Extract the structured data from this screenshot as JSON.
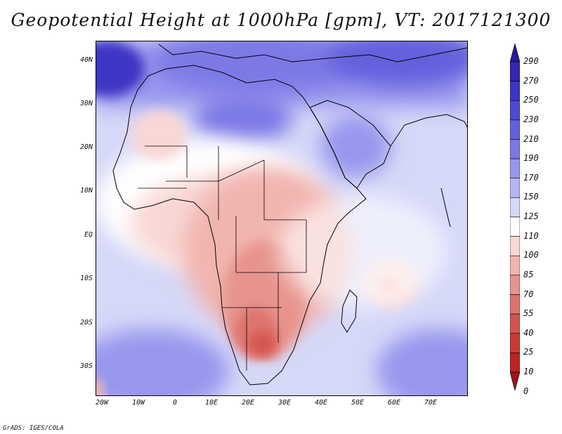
{
  "title": "Geopotential Height at 1000hPa [gpm], VT: 2017121300",
  "credit": "GrADS: IGES/COLA",
  "map": {
    "lat_labels": [
      "40N",
      "30N",
      "20N",
      "10N",
      "EQ",
      "10S",
      "20S",
      "30S"
    ],
    "lon_labels": [
      "20W",
      "10W",
      "0",
      "10E",
      "20E",
      "30E",
      "40E",
      "50E",
      "60E",
      "70E"
    ]
  },
  "colorbar": {
    "labels": [
      "290",
      "270",
      "250",
      "230",
      "210",
      "190",
      "170",
      "150",
      "125",
      "110",
      "100",
      "85",
      "70",
      "55",
      "40",
      "25",
      "10",
      "0"
    ],
    "colors": [
      "#2a1a9a",
      "#3227b0",
      "#3d35c4",
      "#4f49d2",
      "#6460dd",
      "#7c79e6",
      "#9897ee",
      "#b6b6f4",
      "#d6d8f8",
      "#ffffff",
      "#f9d7d4",
      "#f1b5b0",
      "#e8948e",
      "#de746d",
      "#d35550",
      "#c73a36",
      "#b82622",
      "#a0141a"
    ]
  },
  "chart_data": {
    "type": "heatmap",
    "title": "Geopotential Height at 1000hPa [gpm], VT: 2017121300",
    "variable": "Geopotential Height at 1000hPa",
    "units": "gpm",
    "valid_time": "2017121300",
    "lon_range": [
      -22,
      80
    ],
    "lat_range": [
      -36,
      45
    ],
    "levels": [
      0,
      10,
      25,
      40,
      55,
      70,
      85,
      100,
      110,
      125,
      150,
      170,
      190,
      210,
      230,
      250,
      270,
      290
    ],
    "features": [
      {
        "region": "Mediterranean / North Africa",
        "approx_value": 190
      },
      {
        "region": "Northwest Atlantic corner",
        "approx_value": 250
      },
      {
        "region": "Arabian Peninsula",
        "approx_value": 170
      },
      {
        "region": "Southern Africa (Botswana/Namibia low)",
        "approx_value": 40
      },
      {
        "region": "Central Africa",
        "approx_value": 85
      },
      {
        "region": "Western Sahara",
        "approx_value": 100
      },
      {
        "region": "South Atlantic",
        "approx_value": 190
      },
      {
        "region": "South Indian Ocean",
        "approx_value": 190
      },
      {
        "region": "Western Indian Ocean near 57E 12S",
        "approx_value": 85
      }
    ]
  }
}
